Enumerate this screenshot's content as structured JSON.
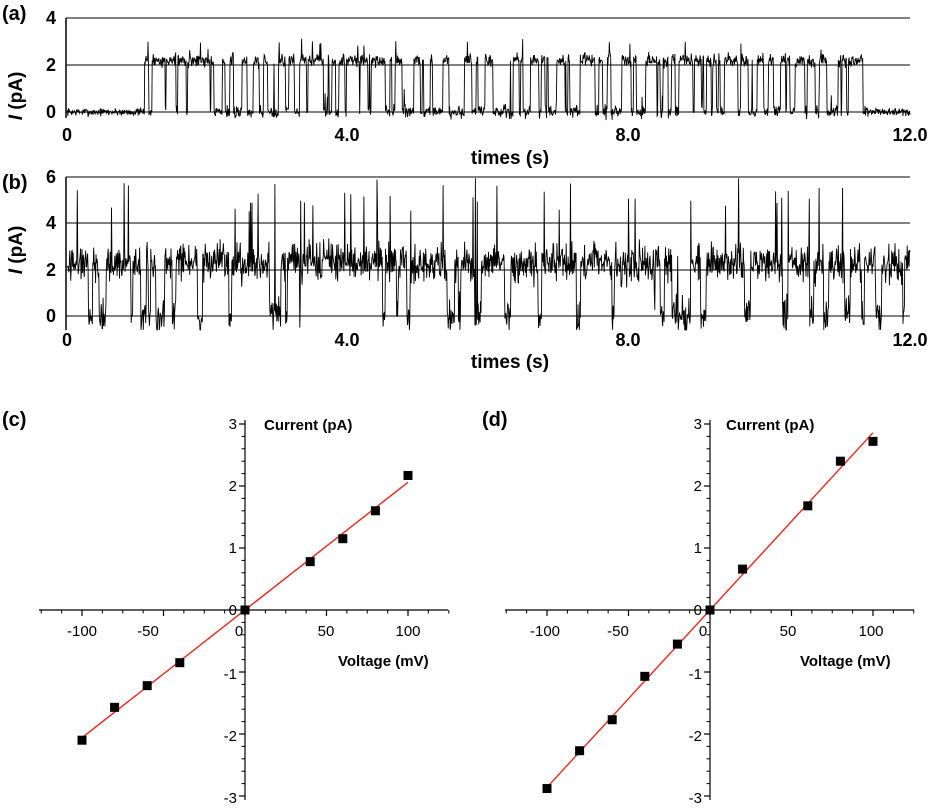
{
  "panels": {
    "a": {
      "label": "(a)",
      "ylabel_italic": "I",
      "ylabel_unit": " (pA)",
      "xlabel": "times (s)",
      "x_tick_labels": [
        "0",
        "4.0",
        "8.0",
        "12.0"
      ],
      "y_tick_labels": [
        "0",
        "2",
        "4"
      ]
    },
    "b": {
      "label": "(b)",
      "ylabel_italic": "I",
      "ylabel_unit": " (pA)",
      "xlabel": "times (s)",
      "x_tick_labels": [
        "0",
        "4.0",
        "8.0",
        "12.0"
      ],
      "y_tick_labels": [
        "0",
        "2",
        "4",
        "6"
      ]
    },
    "c": {
      "label": "(c)",
      "xlabel": "Voltage (mV)",
      "ylabel": "Current (pA)",
      "x_tick_labels": [
        "-100",
        "-50",
        "0",
        "50",
        "100"
      ],
      "y_tick_labels": [
        "3",
        "2",
        "1",
        "0",
        "-1",
        "-2",
        "-3"
      ]
    },
    "d": {
      "label": "(d)",
      "xlabel": "Voltage (mV)",
      "ylabel": "Current (pA)",
      "x_tick_labels": [
        "-100",
        "-50",
        "0",
        "50",
        "100"
      ],
      "y_tick_labels": [
        "3",
        "2",
        "1",
        "0",
        "-1",
        "-2",
        "-3"
      ]
    }
  },
  "colors": {
    "trace": "#000000",
    "grid": "#000000",
    "fit_line": "#e8281e",
    "marker": "#000000"
  },
  "chart_data": [
    {
      "id": "a",
      "type": "line",
      "description_type": "single-channel current trace",
      "xlabel": "times (s)",
      "ylabel": "I (pA)",
      "xlim": [
        0,
        12.0
      ],
      "ylim": [
        0,
        4
      ],
      "grid": true,
      "states": [
        {
          "t0": 0.0,
          "t1": 1.1,
          "mode": "closed"
        },
        {
          "t0": 1.1,
          "t1": 11.4,
          "mode": "bursting"
        },
        {
          "t0": 11.4,
          "t1": 12.0,
          "mode": "closed"
        }
      ],
      "levels": {
        "closed": 0,
        "open": 2
      }
    },
    {
      "id": "b",
      "type": "line",
      "description_type": "single-channel current trace",
      "xlabel": "times (s)",
      "ylabel": "I (pA)",
      "xlim": [
        0,
        12.0
      ],
      "ylim": [
        0,
        6
      ],
      "grid": true,
      "states": [
        {
          "t0": 0.0,
          "t1": 12.0,
          "mode": "mostly-open"
        }
      ],
      "levels": {
        "closed": 0,
        "open": 2,
        "spikes": 4.5
      }
    },
    {
      "id": "c",
      "type": "scatter",
      "xlabel": "Voltage (mV)",
      "ylabel": "Current (pA)",
      "xlim": [
        -125,
        125
      ],
      "ylim": [
        -3,
        3
      ],
      "x_ticks": [
        -100,
        -50,
        0,
        50,
        100
      ],
      "y_ticks": [
        -3,
        -2,
        -1,
        0,
        1,
        2,
        3
      ],
      "points": [
        {
          "x": -100,
          "y": -2.1
        },
        {
          "x": -80,
          "y": -1.57
        },
        {
          "x": -60,
          "y": -1.22
        },
        {
          "x": -40,
          "y": -0.85
        },
        {
          "x": 0,
          "y": 0.0
        },
        {
          "x": 40,
          "y": 0.78
        },
        {
          "x": 60,
          "y": 1.15
        },
        {
          "x": 80,
          "y": 1.6
        },
        {
          "x": 100,
          "y": 2.17
        }
      ],
      "fit": {
        "type": "linear",
        "x": [
          -100,
          100
        ],
        "y": [
          -2.06,
          2.06
        ]
      }
    },
    {
      "id": "d",
      "type": "scatter",
      "xlabel": "Voltage (mV)",
      "ylabel": "Current (pA)",
      "xlim": [
        -125,
        125
      ],
      "ylim": [
        -3,
        3
      ],
      "x_ticks": [
        -100,
        -50,
        0,
        50,
        100
      ],
      "y_ticks": [
        -3,
        -2,
        -1,
        0,
        1,
        2,
        3
      ],
      "points": [
        {
          "x": -100,
          "y": -2.88
        },
        {
          "x": -80,
          "y": -2.27
        },
        {
          "x": -60,
          "y": -1.77
        },
        {
          "x": -40,
          "y": -1.07
        },
        {
          "x": -20,
          "y": -0.55
        },
        {
          "x": 0,
          "y": 0.0
        },
        {
          "x": 20,
          "y": 0.66
        },
        {
          "x": 60,
          "y": 1.68
        },
        {
          "x": 80,
          "y": 2.4
        },
        {
          "x": 100,
          "y": 2.72
        }
      ],
      "fit": {
        "type": "linear",
        "x": [
          -100,
          100
        ],
        "y": [
          -2.86,
          2.86
        ]
      }
    }
  ]
}
